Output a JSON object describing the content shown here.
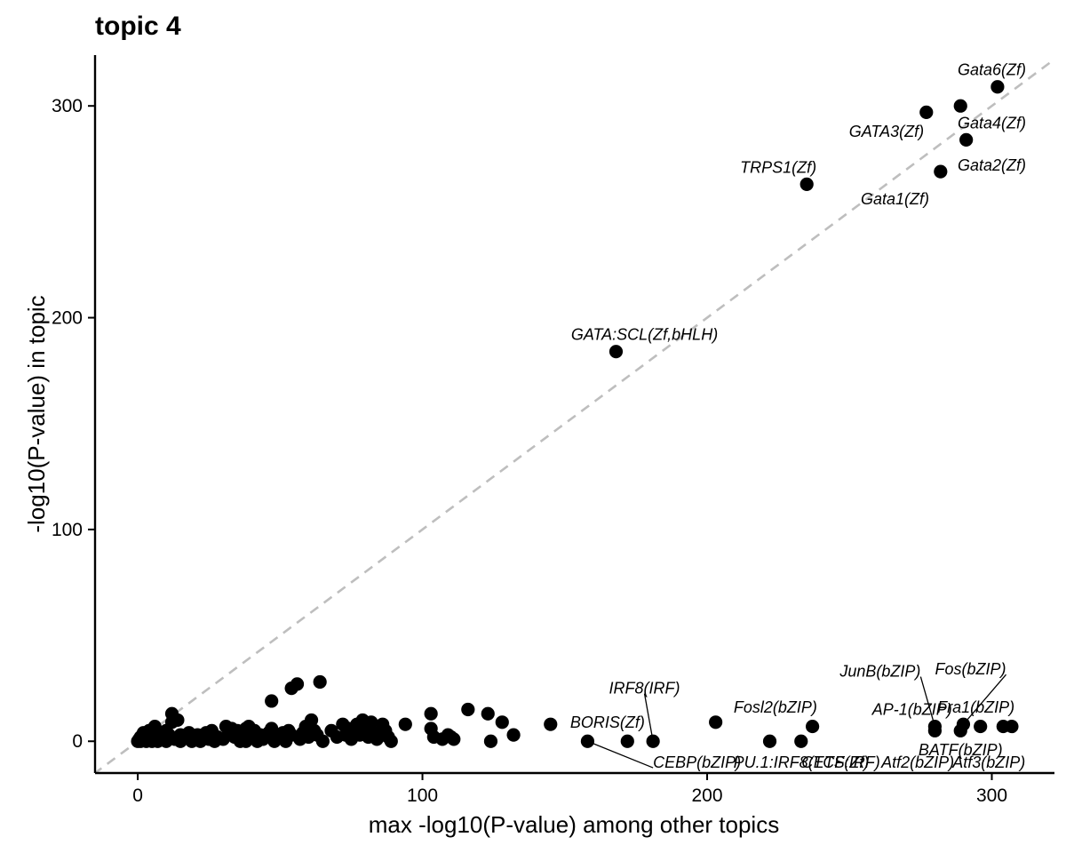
{
  "chart_data": {
    "type": "scatter",
    "title": "topic 4",
    "xlabel": "max -log10(P-value) among other topics",
    "ylabel": "-log10(P-value) in topic",
    "xlim": [
      -15,
      322
    ],
    "ylim": [
      -15,
      324
    ],
    "xticks": [
      0,
      100,
      200,
      300
    ],
    "yticks": [
      0,
      100,
      200,
      300
    ],
    "grid": false,
    "reference_line": "y = x (dashed, grey)",
    "point_color": "#000000",
    "line_color": "#bebebe",
    "points": [
      {
        "x": 0,
        "y": 0
      },
      {
        "x": 0.5,
        "y": 1
      },
      {
        "x": 1,
        "y": 2
      },
      {
        "x": 1,
        "y": 0
      },
      {
        "x": 2,
        "y": 4
      },
      {
        "x": 2,
        "y": 1
      },
      {
        "x": 3,
        "y": 0
      },
      {
        "x": 3,
        "y": 2
      },
      {
        "x": 4,
        "y": 1
      },
      {
        "x": 4,
        "y": 5
      },
      {
        "x": 5,
        "y": 3
      },
      {
        "x": 5,
        "y": 0
      },
      {
        "x": 6,
        "y": 7
      },
      {
        "x": 6,
        "y": 2
      },
      {
        "x": 7,
        "y": 0
      },
      {
        "x": 8,
        "y": 4
      },
      {
        "x": 8,
        "y": 1
      },
      {
        "x": 9,
        "y": 2
      },
      {
        "x": 10,
        "y": 0
      },
      {
        "x": 10,
        "y": 5
      },
      {
        "x": 11,
        "y": 3
      },
      {
        "x": 12,
        "y": 9
      },
      {
        "x": 12,
        "y": 13
      },
      {
        "x": 13,
        "y": 1
      },
      {
        "x": 14,
        "y": 10
      },
      {
        "x": 15,
        "y": 3
      },
      {
        "x": 15,
        "y": 0
      },
      {
        "x": 17,
        "y": 2
      },
      {
        "x": 18,
        "y": 4
      },
      {
        "x": 19,
        "y": 0
      },
      {
        "x": 20,
        "y": 1
      },
      {
        "x": 21,
        "y": 3
      },
      {
        "x": 22,
        "y": 0
      },
      {
        "x": 24,
        "y": 4
      },
      {
        "x": 25,
        "y": 1
      },
      {
        "x": 26,
        "y": 5
      },
      {
        "x": 27,
        "y": 0
      },
      {
        "x": 28,
        "y": 2
      },
      {
        "x": 30,
        "y": 1
      },
      {
        "x": 31,
        "y": 7
      },
      {
        "x": 32,
        "y": 4
      },
      {
        "x": 33,
        "y": 6
      },
      {
        "x": 34,
        "y": 2
      },
      {
        "x": 35,
        "y": 5
      },
      {
        "x": 36,
        "y": 0
      },
      {
        "x": 37,
        "y": 3
      },
      {
        "x": 38,
        "y": 6
      },
      {
        "x": 38,
        "y": 0
      },
      {
        "x": 39,
        "y": 7
      },
      {
        "x": 40,
        "y": 2
      },
      {
        "x": 41,
        "y": 5
      },
      {
        "x": 42,
        "y": 0
      },
      {
        "x": 43,
        "y": 3
      },
      {
        "x": 44,
        "y": 1
      },
      {
        "x": 46,
        "y": 4
      },
      {
        "x": 47,
        "y": 6
      },
      {
        "x": 47,
        "y": 19
      },
      {
        "x": 48,
        "y": 0
      },
      {
        "x": 50,
        "y": 2
      },
      {
        "x": 51,
        "y": 4
      },
      {
        "x": 52,
        "y": 0
      },
      {
        "x": 53,
        "y": 5
      },
      {
        "x": 54,
        "y": 3
      },
      {
        "x": 54,
        "y": 25
      },
      {
        "x": 56,
        "y": 27
      },
      {
        "x": 57,
        "y": 1
      },
      {
        "x": 58,
        "y": 4
      },
      {
        "x": 59,
        "y": 7
      },
      {
        "x": 60,
        "y": 2
      },
      {
        "x": 61,
        "y": 10
      },
      {
        "x": 62,
        "y": 5
      },
      {
        "x": 63,
        "y": 3
      },
      {
        "x": 64,
        "y": 28
      },
      {
        "x": 65,
        "y": 0
      },
      {
        "x": 68,
        "y": 5
      },
      {
        "x": 70,
        "y": 2
      },
      {
        "x": 72,
        "y": 8
      },
      {
        "x": 73,
        "y": 3
      },
      {
        "x": 74,
        "y": 6
      },
      {
        "x": 75,
        "y": 1
      },
      {
        "x": 76,
        "y": 5
      },
      {
        "x": 77,
        "y": 8
      },
      {
        "x": 78,
        "y": 3
      },
      {
        "x": 79,
        "y": 10
      },
      {
        "x": 80,
        "y": 6
      },
      {
        "x": 81,
        "y": 2
      },
      {
        "x": 82,
        "y": 9
      },
      {
        "x": 83,
        "y": 4
      },
      {
        "x": 84,
        "y": 1
      },
      {
        "x": 85,
        "y": 3
      },
      {
        "x": 86,
        "y": 8
      },
      {
        "x": 87,
        "y": 5
      },
      {
        "x": 88,
        "y": 2
      },
      {
        "x": 89,
        "y": 0
      },
      {
        "x": 94,
        "y": 8
      },
      {
        "x": 103,
        "y": 13
      },
      {
        "x": 103,
        "y": 6
      },
      {
        "x": 104,
        "y": 2
      },
      {
        "x": 107,
        "y": 1
      },
      {
        "x": 109,
        "y": 3
      },
      {
        "x": 110,
        "y": 2
      },
      {
        "x": 111,
        "y": 1
      },
      {
        "x": 116,
        "y": 15
      },
      {
        "x": 123,
        "y": 13
      },
      {
        "x": 124,
        "y": 0
      },
      {
        "x": 128,
        "y": 9
      },
      {
        "x": 132,
        "y": 3
      },
      {
        "x": 145,
        "y": 8
      },
      {
        "x": 158,
        "y": 0
      },
      {
        "x": 172,
        "y": 0
      },
      {
        "x": 181,
        "y": 0
      },
      {
        "x": 203,
        "y": 9
      },
      {
        "x": 222,
        "y": 0
      },
      {
        "x": 233,
        "y": 0
      },
      {
        "x": 237,
        "y": 7
      },
      {
        "x": 280,
        "y": 7
      },
      {
        "x": 280,
        "y": 5
      },
      {
        "x": 289,
        "y": 5
      },
      {
        "x": 290,
        "y": 8
      },
      {
        "x": 296,
        "y": 7
      },
      {
        "x": 304,
        "y": 7
      },
      {
        "x": 307,
        "y": 7
      },
      {
        "x": 168,
        "y": 184
      },
      {
        "x": 235,
        "y": 263
      },
      {
        "x": 277,
        "y": 297
      },
      {
        "x": 289,
        "y": 300
      },
      {
        "x": 291,
        "y": 284
      },
      {
        "x": 282,
        "y": 269
      },
      {
        "x": 302,
        "y": 309
      }
    ],
    "labels": [
      {
        "text": "Gata6(Zf)",
        "x": 302,
        "y": 309,
        "lx": 300,
        "ly": 317,
        "anchor": "middle",
        "line": false
      },
      {
        "text": "GATA3(Zf)",
        "x": 277,
        "y": 297,
        "lx": 263,
        "ly": 288,
        "anchor": "middle",
        "line": false
      },
      {
        "text": "Gata4(Zf)",
        "x": 291,
        "y": 284,
        "lx": 300,
        "ly": 292,
        "anchor": "middle",
        "line": false
      },
      {
        "text": "Gata2(Zf)",
        "x": 282,
        "y": 269,
        "lx": 300,
        "ly": 272,
        "anchor": "middle",
        "line": false
      },
      {
        "text": "Gata1(Zf)",
        "x": 282,
        "y": 269,
        "lx": 278,
        "ly": 256,
        "anchor": "end",
        "line": false
      },
      {
        "text": "TRPS1(Zf)",
        "x": 235,
        "y": 263,
        "lx": 225,
        "ly": 271,
        "anchor": "middle",
        "line": false
      },
      {
        "text": "GATA:SCL(Zf,bHLH)",
        "x": 168,
        "y": 184,
        "lx": 178,
        "ly": 192,
        "anchor": "middle",
        "line": false
      },
      {
        "text": "JunB(bZIP)",
        "x": 280,
        "y": 7,
        "lx": 275,
        "ly": 33,
        "anchor": "end",
        "line": true
      },
      {
        "text": "Fos(bZIP)",
        "x": 290,
        "y": 8,
        "lx": 305,
        "ly": 34,
        "anchor": "end",
        "line": true
      },
      {
        "text": "AP-1(bZIP)",
        "x": 280,
        "y": 5,
        "lx": 272,
        "ly": 15,
        "anchor": "middle",
        "line": false
      },
      {
        "text": "Fra1(bZIP)",
        "x": 296,
        "y": 7,
        "lx": 308,
        "ly": 16,
        "anchor": "end",
        "line": false
      },
      {
        "text": "IRF8(IRF)",
        "x": 181,
        "y": 0,
        "lx": 178,
        "ly": 25,
        "anchor": "middle",
        "line": true
      },
      {
        "text": "Fosl2(bZIP)",
        "x": 203,
        "y": 9,
        "lx": 224,
        "ly": 16,
        "anchor": "middle",
        "line": false
      },
      {
        "text": "BORIS(Zf)",
        "x": 158,
        "y": 0,
        "lx": 165,
        "ly": 9,
        "anchor": "middle",
        "line": false
      },
      {
        "text": "CEBP(bZIP)",
        "x": 158,
        "y": 0,
        "lx": 181,
        "ly": -10,
        "anchor": "start",
        "line": true
      },
      {
        "text": "PU.1:IRF8(ETS:IRF)",
        "x": 222,
        "y": 0,
        "lx": 235,
        "ly": -10,
        "anchor": "middle",
        "line": false
      },
      {
        "text": "CTCF(Zf)",
        "x": 233,
        "y": 0,
        "lx": 245,
        "ly": -10,
        "anchor": "middle",
        "line": false
      },
      {
        "text": "Atf2(bZIP)",
        "x": 280,
        "y": 5,
        "lx": 274,
        "ly": -10,
        "anchor": "middle",
        "line": false
      },
      {
        "text": "BATF(bZIP)",
        "x": 289,
        "y": 5,
        "lx": 289,
        "ly": -4,
        "anchor": "middle",
        "line": false
      },
      {
        "text": "Atf3(bZIP)",
        "x": 296,
        "y": 7,
        "lx": 299,
        "ly": -10,
        "anchor": "middle",
        "line": false
      }
    ]
  }
}
